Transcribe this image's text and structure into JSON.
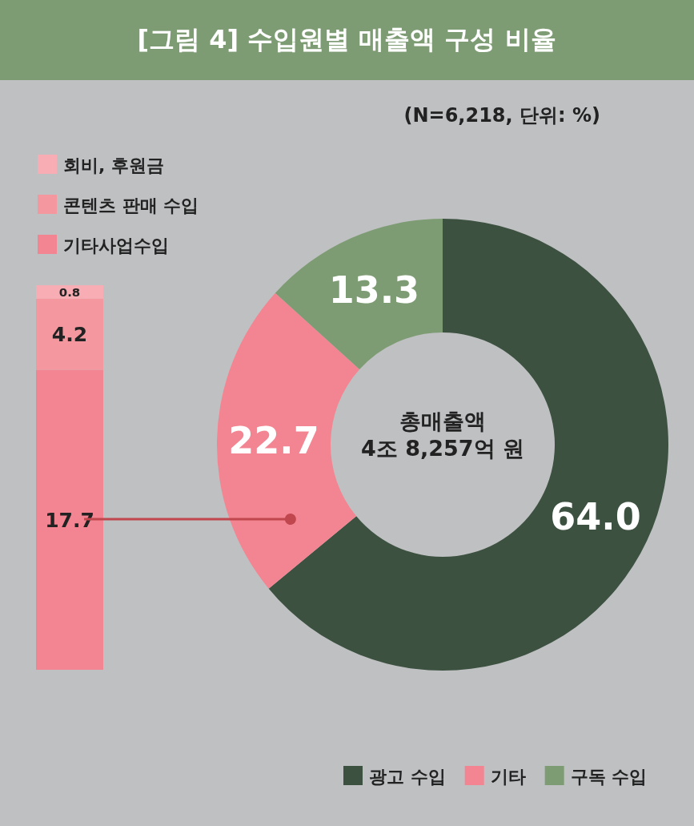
{
  "chart_data": [
    {
      "type": "donut",
      "title": "[그림 4] 수입원별 매출액 구성 비율",
      "subtitle": "(N=6,218, 단위: %)",
      "categories": [
        "광고 수입",
        "기타",
        "구독 수입"
      ],
      "values": [
        64.0,
        22.7,
        13.3
      ],
      "colors": [
        "#3c5140",
        "#f38592",
        "#7e9c73"
      ],
      "value_labels": [
        "64.0",
        "22.7",
        "13.3"
      ],
      "legend": "bottom right",
      "annotations": [
        "총매출액",
        "4조 8,257억 원"
      ]
    },
    {
      "type": "bar",
      "stacked": true,
      "categories": [
        null
      ],
      "series": [
        {
          "name": "기타사업수입",
          "color": "#f38592",
          "values": [
            17.7
          ]
        },
        {
          "name": "콘텐츠 판매 수입",
          "color": "#f5979f",
          "values": [
            4.2
          ]
        },
        {
          "name": "회비, 후원금",
          "color": "#f7adb3",
          "values": [
            0.8
          ]
        }
      ],
      "data_labels": true,
      "legend": "top"
    }
  ]
}
